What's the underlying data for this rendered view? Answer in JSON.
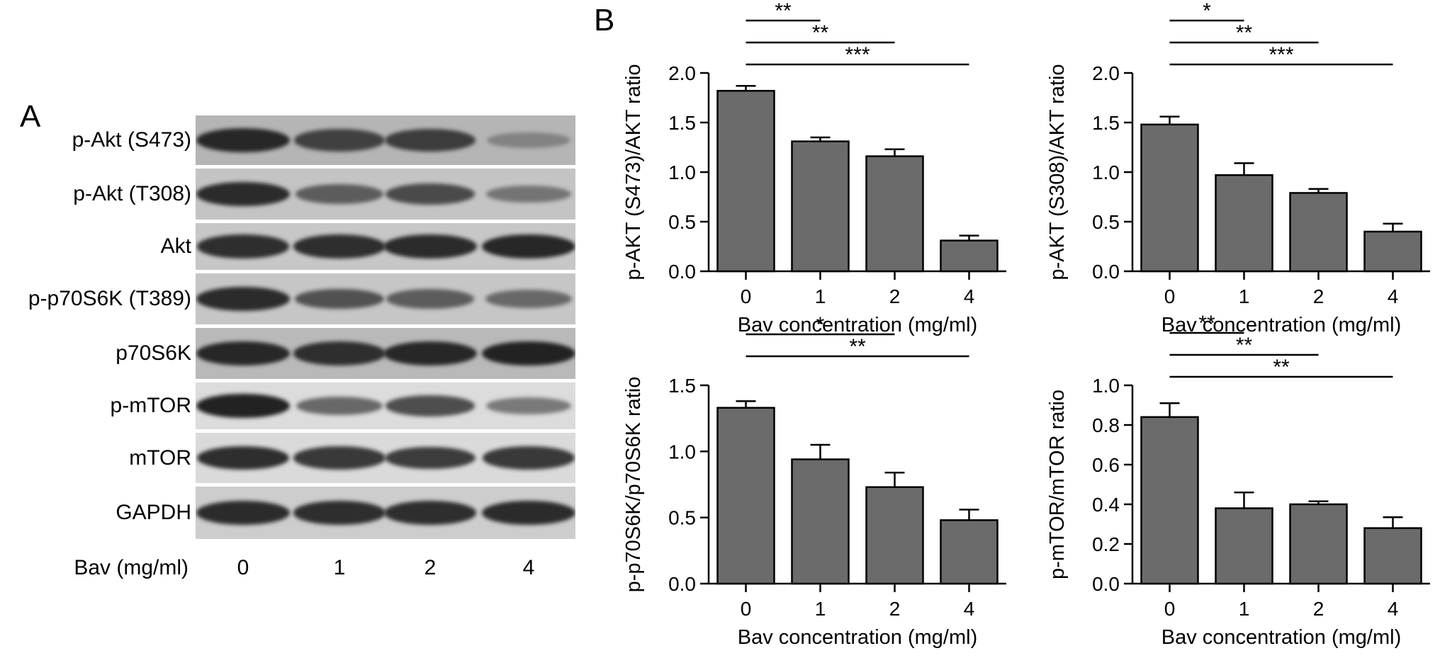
{
  "panels": {
    "a_label": "A",
    "b_label": "B"
  },
  "blot": {
    "rows": [
      {
        "label": "p-Akt (S473)",
        "intensities": [
          0.92,
          0.78,
          0.8,
          0.4
        ],
        "bg": "#b5b5b5"
      },
      {
        "label": "p-Akt (T308)",
        "intensities": [
          0.9,
          0.62,
          0.72,
          0.48
        ],
        "bg": "#c4c4c4"
      },
      {
        "label": "Akt",
        "intensities": [
          0.88,
          0.88,
          0.9,
          0.92
        ],
        "bg": "#c7c7c7"
      },
      {
        "label": "p-p70S6K (T389)",
        "intensities": [
          0.9,
          0.68,
          0.62,
          0.55
        ],
        "bg": "#c6c6c6"
      },
      {
        "label": "p70S6K",
        "intensities": [
          0.92,
          0.88,
          0.92,
          0.95
        ],
        "bg": "#b9b9b9"
      },
      {
        "label": "p-mTOR",
        "intensities": [
          0.95,
          0.55,
          0.7,
          0.45
        ],
        "bg": "#dcdcdc"
      },
      {
        "label": "mTOR",
        "intensities": [
          0.88,
          0.82,
          0.8,
          0.82
        ],
        "bg": "#dadada"
      },
      {
        "label": "GAPDH",
        "intensities": [
          0.9,
          0.88,
          0.88,
          0.9
        ],
        "bg": "#cdcdcd"
      }
    ],
    "x_label": "Bav (mg/ml)",
    "lanes": [
      "0",
      "1",
      "2",
      "4"
    ]
  },
  "chart_data": [
    {
      "type": "bar",
      "categories": [
        "0",
        "1",
        "2",
        "4"
      ],
      "values": [
        1.82,
        1.31,
        1.16,
        0.31
      ],
      "errors": [
        0.05,
        0.04,
        0.07,
        0.05
      ],
      "ylabel": "p-AKT (S473)/AKT ratio",
      "xlabel": "Bav concentration (mg/ml)",
      "ylim": [
        0,
        2.0
      ],
      "yticks": [
        "0.0",
        "0.5",
        "1.0",
        "1.5",
        "2.0"
      ],
      "bar_color": "#6b6b6b",
      "significance": [
        {
          "from": "0",
          "to": "1",
          "label": "**"
        },
        {
          "from": "0",
          "to": "2",
          "label": "**"
        },
        {
          "from": "0",
          "to": "4",
          "label": "***"
        }
      ]
    },
    {
      "type": "bar",
      "categories": [
        "0",
        "1",
        "2",
        "4"
      ],
      "values": [
        1.48,
        0.97,
        0.79,
        0.4
      ],
      "errors": [
        0.08,
        0.12,
        0.04,
        0.08
      ],
      "ylabel": "p-AKT (S308)/AKT ratio",
      "xlabel": "Bav concentration (mg/ml)",
      "ylim": [
        0,
        2.0
      ],
      "yticks": [
        "0.0",
        "0.5",
        "1.0",
        "1.5",
        "2.0"
      ],
      "bar_color": "#6b6b6b",
      "significance": [
        {
          "from": "0",
          "to": "1",
          "label": "*"
        },
        {
          "from": "0",
          "to": "2",
          "label": "**"
        },
        {
          "from": "0",
          "to": "4",
          "label": "***"
        }
      ]
    },
    {
      "type": "bar",
      "categories": [
        "0",
        "1",
        "2",
        "4"
      ],
      "values": [
        1.33,
        0.94,
        0.73,
        0.48
      ],
      "errors": [
        0.05,
        0.11,
        0.11,
        0.08
      ],
      "ylabel": "p-p70S6K/p70S6K ratio",
      "xlabel": "Bav concentration (mg/ml)",
      "ylim": [
        0,
        1.5
      ],
      "yticks": [
        "0.0",
        "0.5",
        "1.0",
        "1.5"
      ],
      "bar_color": "#6b6b6b",
      "significance": [
        {
          "from": "0",
          "to": "2",
          "label": "*"
        },
        {
          "from": "0",
          "to": "4",
          "label": "**"
        }
      ]
    },
    {
      "type": "bar",
      "categories": [
        "0",
        "1",
        "2",
        "4"
      ],
      "values": [
        0.84,
        0.38,
        0.4,
        0.28
      ],
      "errors": [
        0.07,
        0.08,
        0.015,
        0.055
      ],
      "ylabel": "p-mTOR/mTOR ratio",
      "xlabel": "Bav concentration (mg/ml)",
      "ylim": [
        0,
        1.0
      ],
      "yticks": [
        "0.0",
        "0.2",
        "0.4",
        "0.6",
        "0.8",
        "1.0"
      ],
      "bar_color": "#6b6b6b",
      "significance": [
        {
          "from": "0",
          "to": "1",
          "label": "**"
        },
        {
          "from": "0",
          "to": "2",
          "label": "**"
        },
        {
          "from": "0",
          "to": "4",
          "label": "**"
        }
      ]
    }
  ]
}
